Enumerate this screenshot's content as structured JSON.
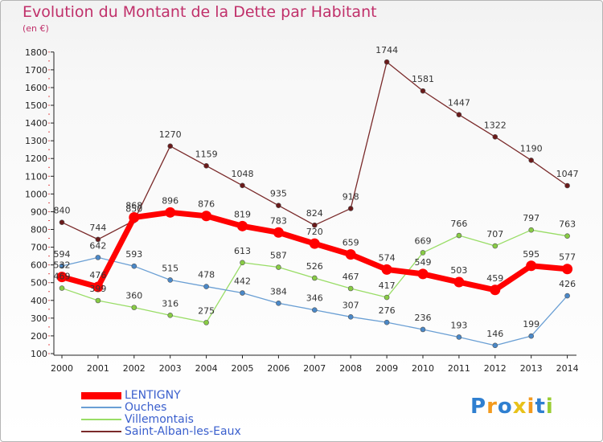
{
  "title": "Evolution du Montant de la Dette par Habitant",
  "unit": "(en €)",
  "logo": "Proxiti",
  "chart_data": {
    "type": "line",
    "title": "Evolution du Montant de la Dette par Habitant",
    "ylabel": "(en €)",
    "xlabel": "",
    "ylim": [
      100,
      1800
    ],
    "yticks": [
      "100",
      "200",
      "300",
      "400",
      "500",
      "600",
      "700",
      "800",
      "900",
      "1000",
      "1100",
      "1200",
      "1300",
      "1400",
      "1500",
      "1600",
      "1700",
      "1800"
    ],
    "categories": [
      "2000",
      "2001",
      "2002",
      "2003",
      "2004",
      "2005",
      "2006",
      "2007",
      "2008",
      "2009",
      "2010",
      "2011",
      "2012",
      "2013",
      "2014"
    ],
    "grid": false,
    "legend_position": "bottom-left",
    "series": [
      {
        "name": "LENTIGNY",
        "color": "#ff0000",
        "values": [
          532,
          476,
          868,
          896,
          876,
          819,
          783,
          720,
          659,
          574,
          549,
          503,
          459,
          595,
          577
        ]
      },
      {
        "name": "Ouches",
        "color": "#6a9fd4",
        "values": [
          594,
          642,
          593,
          515,
          478,
          442,
          384,
          346,
          307,
          276,
          236,
          193,
          146,
          199,
          426
        ]
      },
      {
        "name": "Villemontais",
        "color": "#99dd66",
        "values": [
          469,
          399,
          360,
          316,
          275,
          613,
          587,
          526,
          467,
          417,
          669,
          766,
          707,
          797,
          763
        ]
      },
      {
        "name": "Saint-Alban-les-Eaux",
        "color": "#7a2a2a",
        "values": [
          840,
          744,
          850,
          1270,
          1159,
          1048,
          935,
          824,
          918,
          1744,
          1581,
          1447,
          1322,
          1190,
          1047
        ]
      }
    ],
    "data_labels": {
      "LENTIGNY": [
        "532",
        "476",
        "868",
        "896",
        "876",
        "819",
        "783",
        "720",
        "659",
        "574",
        "549",
        "503",
        "459",
        "595",
        "577"
      ],
      "Ouches": [
        "594",
        "642",
        "593",
        "515",
        "478",
        "442",
        "384",
        "346",
        "307",
        "276",
        "236",
        "193",
        "146",
        "199",
        "426"
      ],
      "Villemontais": [
        "469",
        "399",
        "360",
        "316",
        "275",
        "613",
        "587",
        "526",
        "467",
        "417",
        "669",
        "766",
        "707",
        "797",
        "763"
      ],
      "Saint-Alban-les-Eaux": [
        "840",
        "744",
        "850",
        "1270",
        "1159",
        "1048",
        "935",
        "824",
        "918",
        "1744",
        "1581",
        "1447",
        "1322",
        "1190",
        "1047"
      ]
    }
  }
}
